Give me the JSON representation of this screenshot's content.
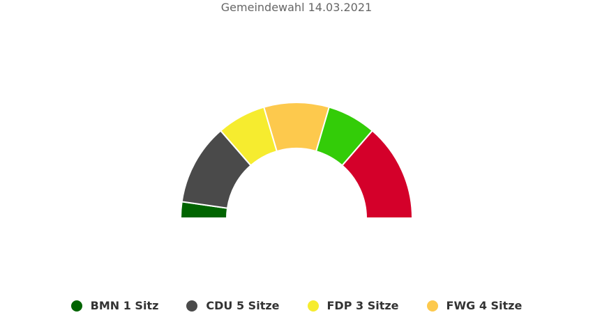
{
  "chart_data": {
    "type": "parliament",
    "title": "Gemeindewahl 14.03.2021",
    "series": [
      {
        "name": "BMN",
        "seats": 1,
        "color": "#006400",
        "legend_label": "BMN 1 Sitz"
      },
      {
        "name": "CDU",
        "seats": 5,
        "color": "#4a4a4a",
        "legend_label": "CDU 5 Sitze"
      },
      {
        "name": "FDP",
        "seats": 3,
        "color": "#f6ec2f",
        "legend_label": "FDP 3 Sitze"
      },
      {
        "name": "FWG",
        "seats": 4,
        "color": "#fdc94d",
        "legend_label": "FWG 4 Sitze"
      },
      {
        "name": "",
        "seats": 3,
        "color": "#33cc08"
      },
      {
        "name": "",
        "seats": 6,
        "color": "#d4002a"
      }
    ]
  }
}
